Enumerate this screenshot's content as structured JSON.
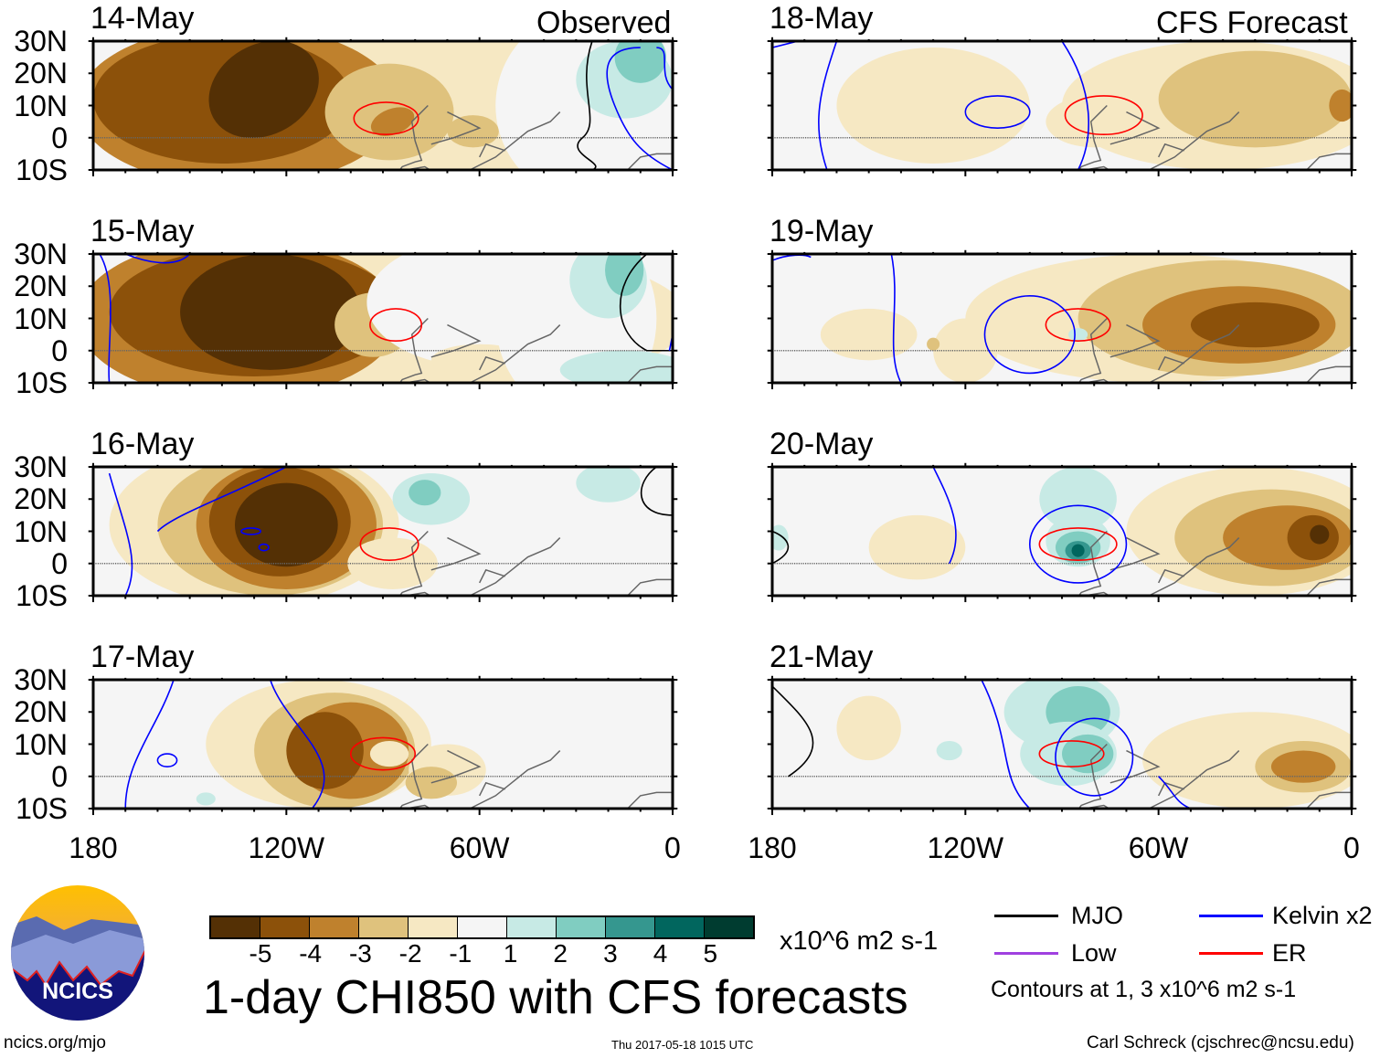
{
  "headers": {
    "observed": "Observed",
    "forecast": "CFS Forecast"
  },
  "panels": [
    {
      "date": "14-May",
      "column": "observed"
    },
    {
      "date": "15-May",
      "column": "observed"
    },
    {
      "date": "16-May",
      "column": "observed"
    },
    {
      "date": "17-May",
      "column": "observed"
    },
    {
      "date": "18-May",
      "column": "forecast"
    },
    {
      "date": "19-May",
      "column": "forecast"
    },
    {
      "date": "20-May",
      "column": "forecast"
    },
    {
      "date": "21-May",
      "column": "forecast"
    }
  ],
  "lat_labels": [
    "30N",
    "20N",
    "10N",
    "0",
    "10S"
  ],
  "lon_labels": [
    "180",
    "120W",
    "60W",
    "0"
  ],
  "colorbar": {
    "colors": [
      "#543005",
      "#8c510a",
      "#bf812d",
      "#dfc27d",
      "#f6e8c3",
      "#f5f5f5",
      "#c7eae5",
      "#80cdc1",
      "#35978f",
      "#01665e",
      "#003c30"
    ],
    "labels": [
      "-5",
      "-4",
      "-3",
      "-2",
      "-1",
      "1",
      "2",
      "3",
      "4",
      "5"
    ],
    "units": "x10^6 m2 s-1"
  },
  "title": "1-day CHI850 with CFS forecasts",
  "legend": {
    "items": [
      {
        "label": "MJO",
        "color": "#000000"
      },
      {
        "label": "Kelvin x2",
        "color": "#0000ff"
      },
      {
        "label": "Low",
        "color": "#a040e0"
      },
      {
        "label": "ER",
        "color": "#ff0000"
      }
    ],
    "note": "Contours at 1, 3 x10^6 m2 s-1"
  },
  "logo": {
    "text": "NCICS"
  },
  "footer": {
    "url": "ncics.org/mjo",
    "timestamp": "Thu 2017-05-18 1015 UTC",
    "credit": "Carl Schreck (cjschrec@ncsu.edu)"
  }
}
